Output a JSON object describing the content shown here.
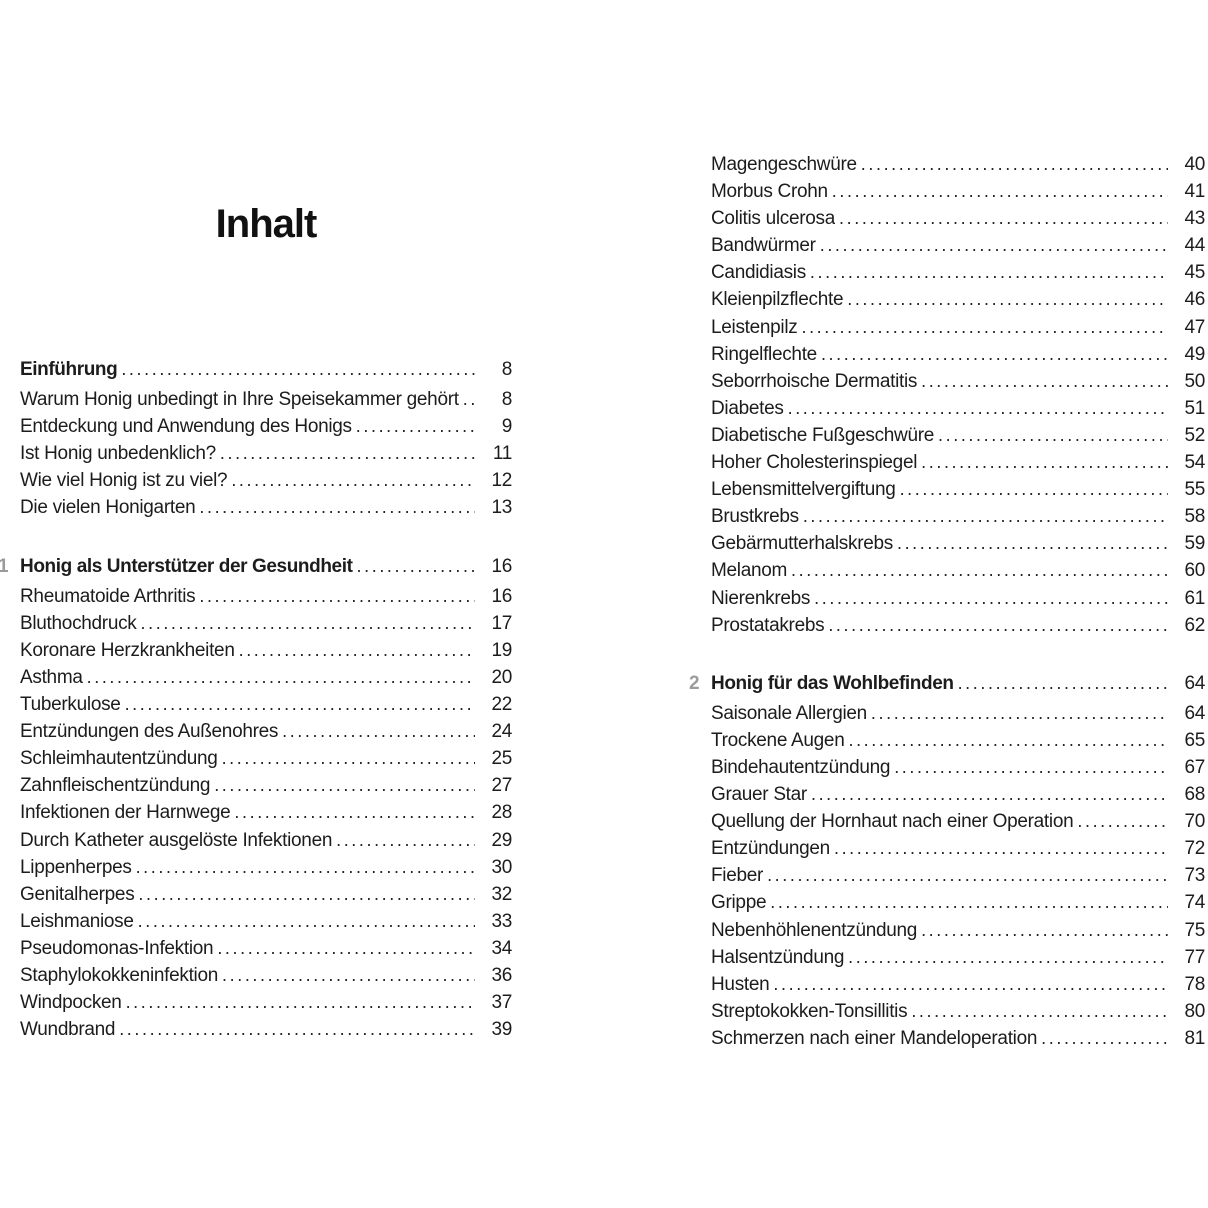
{
  "document": {
    "title": "Inhalt"
  },
  "colors": {
    "text": "#1c1c1c",
    "chapter_number": "#9b9b9b",
    "background": "#ffffff"
  },
  "columns": [
    {
      "position": "left",
      "sections": [
        {
          "number": "",
          "heading": "Einführung",
          "heading_page": "8",
          "entries": [
            {
              "label": "Warum Honig unbedingt in Ihre Speisekammer gehört",
              "page": "8"
            },
            {
              "label": "Entdeckung und Anwendung des Honigs",
              "page": "9"
            },
            {
              "label": "Ist Honig unbedenklich?",
              "page": "11"
            },
            {
              "label": "Wie viel Honig ist zu viel?",
              "page": "12"
            },
            {
              "label": "Die vielen Honigarten",
              "page": "13"
            }
          ]
        },
        {
          "number": "1",
          "heading": "Honig als Unterstützer der Gesundheit",
          "heading_page": "16",
          "entries": [
            {
              "label": "Rheumatoide Arthritis",
              "page": "16"
            },
            {
              "label": "Bluthochdruck",
              "page": "17"
            },
            {
              "label": "Koronare Herzkrankheiten",
              "page": "19"
            },
            {
              "label": "Asthma",
              "page": "20"
            },
            {
              "label": "Tuberkulose",
              "page": "22"
            },
            {
              "label": "Entzündungen des Außenohres",
              "page": "24"
            },
            {
              "label": "Schleimhautentzündung",
              "page": "25"
            },
            {
              "label": "Zahnfleischentzündung",
              "page": "27"
            },
            {
              "label": "Infektionen der Harnwege",
              "page": "28"
            },
            {
              "label": "Durch Katheter ausgelöste Infektionen",
              "page": "29"
            },
            {
              "label": "Lippenherpes",
              "page": "30"
            },
            {
              "label": "Genitalherpes",
              "page": "32"
            },
            {
              "label": "Leishmaniose",
              "page": "33"
            },
            {
              "label": "Pseudomonas-Infektion",
              "page": "34"
            },
            {
              "label": "Staphylokokkeninfektion",
              "page": "36"
            },
            {
              "label": "Windpocken",
              "page": "37"
            },
            {
              "label": "Wundbrand",
              "page": "39"
            }
          ]
        }
      ]
    },
    {
      "position": "right",
      "sections": [
        {
          "number": "",
          "heading": "",
          "heading_page": "",
          "entries": [
            {
              "label": "Magengeschwüre",
              "page": "40"
            },
            {
              "label": "Morbus Crohn",
              "page": "41"
            },
            {
              "label": "Colitis ulcerosa",
              "page": "43"
            },
            {
              "label": "Bandwürmer",
              "page": "44"
            },
            {
              "label": "Candidiasis",
              "page": "45"
            },
            {
              "label": "Kleienpilzflechte",
              "page": "46"
            },
            {
              "label": "Leistenpilz",
              "page": "47"
            },
            {
              "label": "Ringelflechte",
              "page": "49"
            },
            {
              "label": "Seborrhoische Dermatitis",
              "page": "50"
            },
            {
              "label": "Diabetes",
              "page": "51"
            },
            {
              "label": "Diabetische Fußgeschwüre",
              "page": "52"
            },
            {
              "label": "Hoher Cholesterinspiegel",
              "page": "54"
            },
            {
              "label": "Lebensmittelvergiftung",
              "page": "55"
            },
            {
              "label": "Brustkrebs",
              "page": "58"
            },
            {
              "label": "Gebärmutterhalskrebs",
              "page": "59"
            },
            {
              "label": "Melanom",
              "page": "60"
            },
            {
              "label": "Nierenkrebs",
              "page": "61"
            },
            {
              "label": "Prostatakrebs",
              "page": "62"
            }
          ]
        },
        {
          "number": "2",
          "heading": "Honig für das Wohlbefinden",
          "heading_page": "64",
          "entries": [
            {
              "label": "Saisonale Allergien",
              "page": "64"
            },
            {
              "label": "Trockene Augen",
              "page": "65"
            },
            {
              "label": "Bindehautentzündung",
              "page": "67"
            },
            {
              "label": "Grauer Star",
              "page": "68"
            },
            {
              "label": "Quellung der Hornhaut nach einer Operation",
              "page": "70"
            },
            {
              "label": "Entzündungen",
              "page": "72"
            },
            {
              "label": "Fieber",
              "page": "73"
            },
            {
              "label": "Grippe",
              "page": "74"
            },
            {
              "label": "Nebenhöhlenentzündung",
              "page": "75"
            },
            {
              "label": "Halsentzündung",
              "page": "77"
            },
            {
              "label": "Husten",
              "page": "78"
            },
            {
              "label": "Streptokokken-Tonsillitis",
              "page": "80"
            },
            {
              "label": "Schmerzen nach einer Mandeloperation",
              "page": "81"
            }
          ]
        }
      ]
    }
  ]
}
